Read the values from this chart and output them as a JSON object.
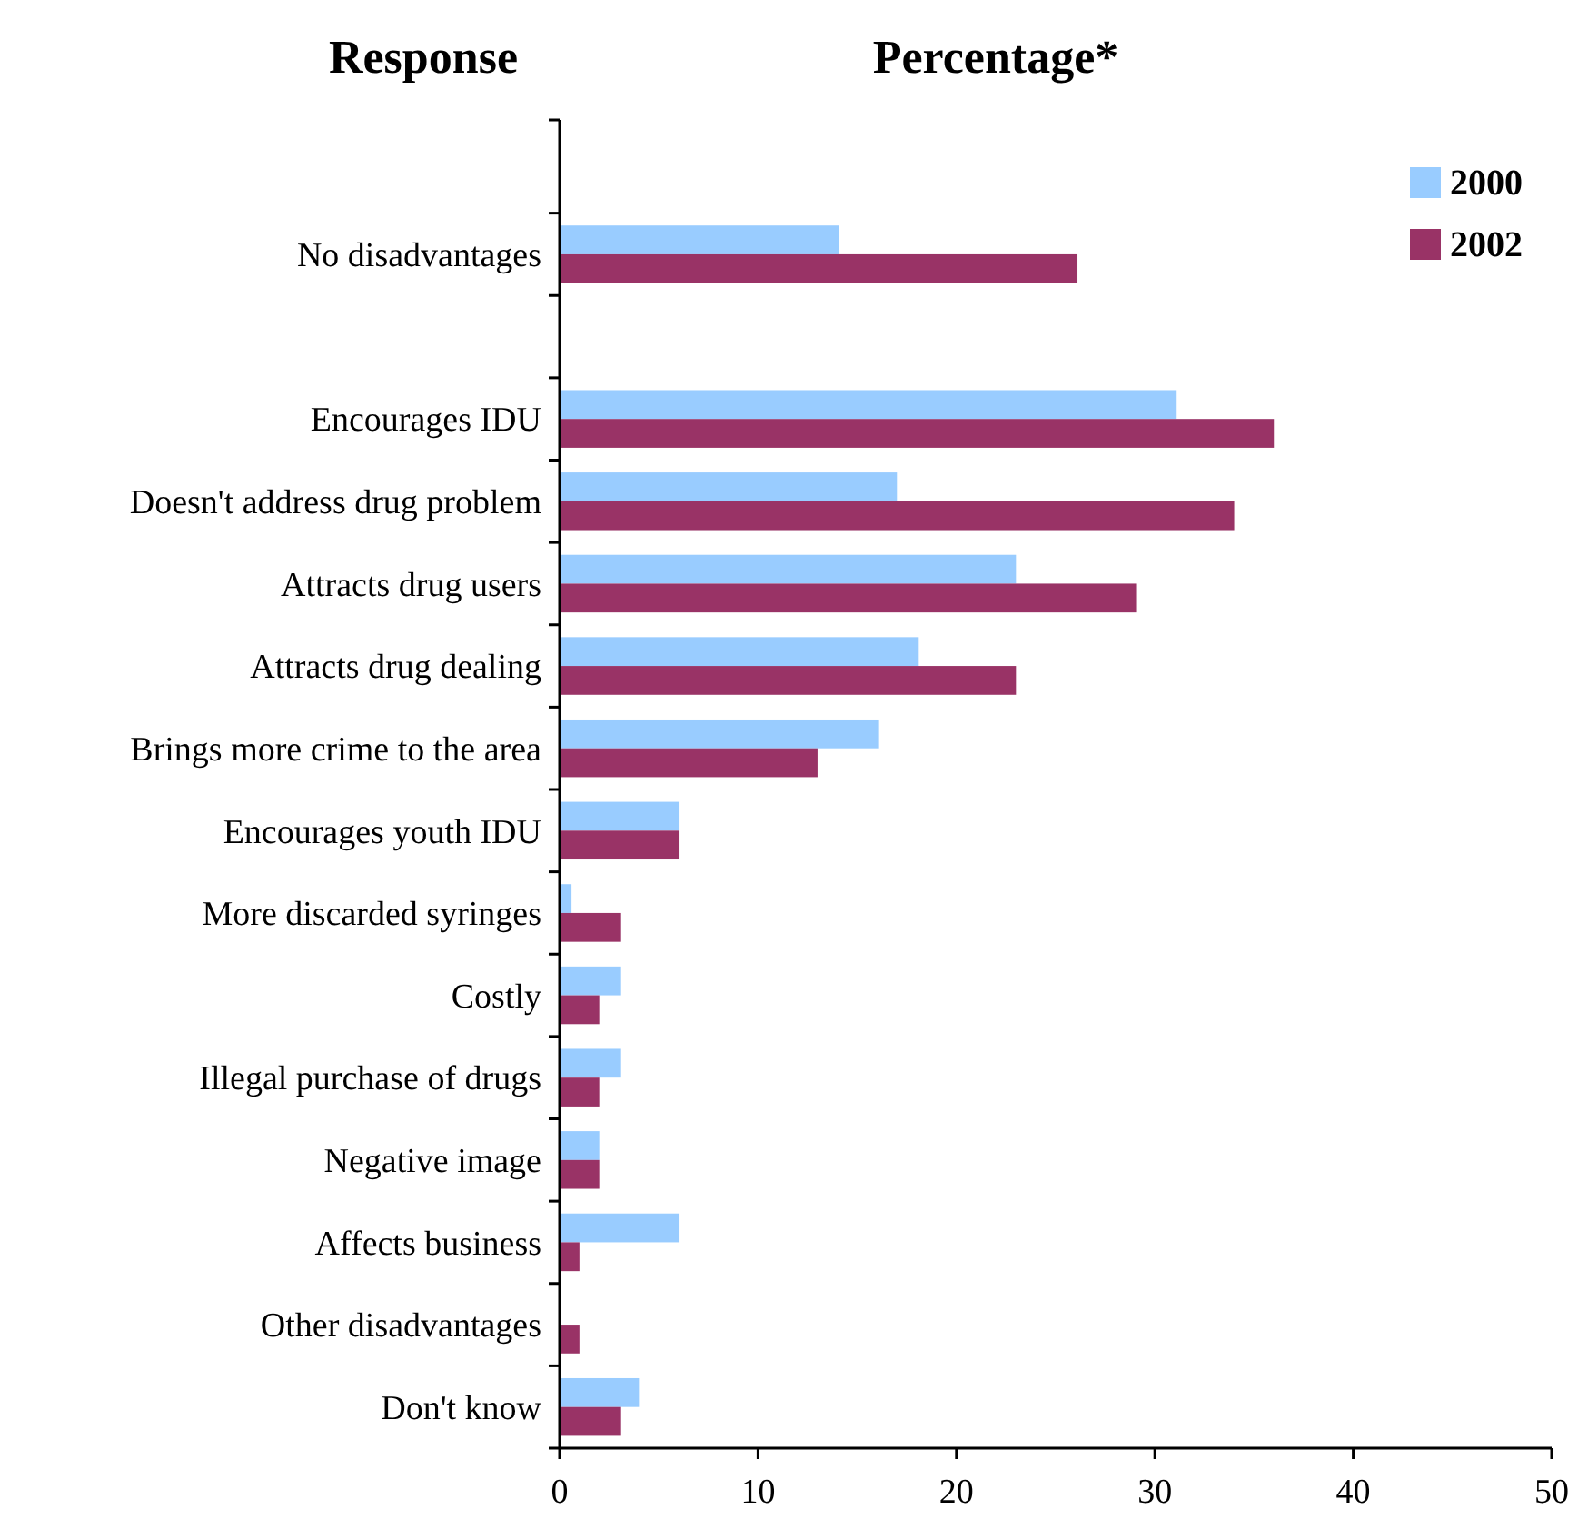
{
  "chart_data": {
    "type": "bar",
    "orientation": "horizontal",
    "ylabel": "Response",
    "xlabel": "Percentage*",
    "categories": [
      null,
      "No disadvantages",
      null,
      "Encourages IDU",
      "Doesn't address drug problem",
      "Attracts drug users",
      "Attracts drug dealing",
      "Brings more crime to the area",
      "Encourages youth IDU",
      "More discarded syringes",
      "Costly",
      "Illegal purchase of drugs",
      "Negative image",
      "Affects business",
      "Other disadvantages",
      "Don't know"
    ],
    "series": [
      {
        "name": "2000",
        "color": "#99ccff",
        "values": [
          null,
          14.1,
          null,
          31.1,
          17,
          23,
          18.1,
          16.1,
          6,
          0.6,
          3.1,
          3.1,
          2,
          6,
          null,
          4
        ]
      },
      {
        "name": "2002",
        "color": "#993366",
        "values": [
          null,
          26.1,
          null,
          36,
          34,
          29.1,
          23,
          13,
          6,
          3.1,
          2,
          2,
          2,
          1,
          1,
          3.1
        ]
      }
    ],
    "xlim": [
      0,
      50
    ],
    "xticks": [
      0,
      10,
      20,
      30,
      40,
      50
    ],
    "grid": false,
    "legend": "top right"
  }
}
